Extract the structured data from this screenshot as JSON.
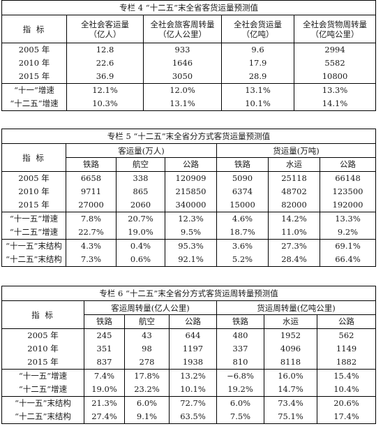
{
  "t4": {
    "title": "专栏 4 “十二五”末全省客货运量预测值",
    "label": "指  标",
    "headers": [
      [
        "全社会客运量",
        "（亿人）"
      ],
      [
        "全社会旅客周转量",
        "（亿人公里）"
      ],
      [
        "全社会货运量",
        "（亿吨）"
      ],
      [
        "全社会货物周转量",
        "（亿吨公里）"
      ]
    ],
    "rows": [
      [
        "2005 年",
        "12.8",
        "933",
        "9.6",
        "2994"
      ],
      [
        "2010 年",
        "22.6",
        "1646",
        "17.9",
        "5582"
      ],
      [
        "2015 年",
        "36.9",
        "3050",
        "28.9",
        "10800"
      ]
    ],
    "growth": [
      [
        "“十一”增速",
        "12.1%",
        "12.0%",
        "13.1%",
        "13.3%"
      ],
      [
        "“十二五”增速",
        "10.3%",
        "13.1%",
        "10.1%",
        "14.1%"
      ]
    ]
  },
  "t5": {
    "title": "专栏 5 “十二五”末全省分方式客货运量预测值",
    "label": "指  标",
    "group1": "客运量(万人)",
    "group2": "货运量(万吨)",
    "sub": [
      "铁路",
      "航空",
      "公路",
      "铁路",
      "水运",
      "公路"
    ],
    "rows": [
      [
        "2005 年",
        "6658",
        "338",
        "120909",
        "5090",
        "25118",
        "66148"
      ],
      [
        "2010 年",
        "9711",
        "865",
        "215850",
        "6374",
        "48702",
        "123500"
      ],
      [
        "2015 年",
        "27000",
        "2060",
        "340000",
        "15000",
        "82000",
        "192000"
      ]
    ],
    "growth": [
      [
        "“十一五”增速",
        "7.8%",
        "20.7%",
        "12.3%",
        "4.6%",
        "14.2%",
        "13.3%"
      ],
      [
        "“十二五”增速",
        "22.7%",
        "19.0%",
        "9.5%",
        "18.7%",
        "11.0%",
        "9.2%"
      ]
    ],
    "struct": [
      [
        "“十一五”末结构",
        "4.3%",
        "0.4%",
        "95.3%",
        "3.6%",
        "27.3%",
        "69.1%"
      ],
      [
        "“十二五”末结构",
        "7.3%",
        "0.6%",
        "92.1%",
        "5.2%",
        "28.4%",
        "66.4%"
      ]
    ]
  },
  "t6": {
    "title": "专栏 6 “十二五”末全省分方式客货运周转量预测值",
    "label": "指  标",
    "group1": "客运周转量(亿人公里)",
    "group2": "货运周转量(亿吨公里)",
    "sub": [
      "铁路",
      "航空",
      "公路",
      "铁路",
      "水运",
      "公路"
    ],
    "rows": [
      [
        "2005 年",
        "245",
        "43",
        "644",
        "480",
        "1952",
        "562"
      ],
      [
        "2010 年",
        "351",
        "98",
        "1197",
        "337",
        "4096",
        "1149"
      ],
      [
        "2015 年",
        "837",
        "278",
        "1938",
        "810",
        "8118",
        "1882"
      ]
    ],
    "growth": [
      [
        "“十一五”增速",
        "7.4%",
        "17.8%",
        "13.2%",
        "−6.8%",
        "16.0%",
        "15.4%"
      ],
      [
        "“十二五”增速",
        "19.0%",
        "23.2%",
        "10.1%",
        "19.2%",
        "14.7%",
        "10.4%"
      ]
    ],
    "struct": [
      [
        "“十一五”末结构",
        "21.3%",
        "6.0%",
        "72.7%",
        "6.0%",
        "73.4%",
        "20.6%"
      ],
      [
        "“十二五”末结构",
        "27.4%",
        "9.1%",
        "63.5%",
        "7.5%",
        "75.1%",
        "17.4%"
      ]
    ]
  }
}
